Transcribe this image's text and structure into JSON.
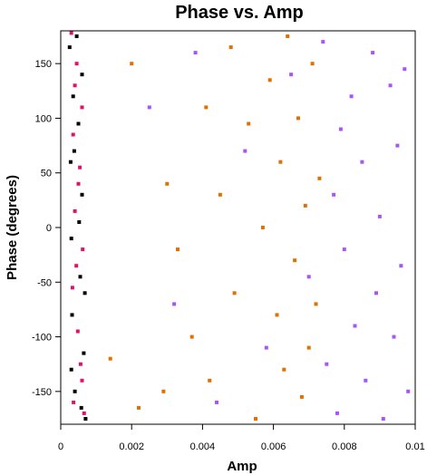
{
  "chart_data": {
    "type": "scatter",
    "title": "Phase vs. Amp",
    "xlabel": "Amp",
    "ylabel": "Phase (degrees)",
    "xlim": [
      0,
      0.01
    ],
    "ylim": [
      -180,
      180
    ],
    "xticks": [
      0,
      0.002,
      0.004,
      0.006,
      0.008,
      0.01
    ],
    "xtick_labels": [
      "0",
      "0.002",
      "0.004",
      "0.006",
      "0.008",
      "0.01"
    ],
    "yticks": [
      -150,
      -100,
      -50,
      0,
      50,
      100,
      150
    ],
    "ytick_labels": [
      "-150",
      "-100",
      "-50",
      "0",
      "50",
      "100",
      "150"
    ],
    "grid": false,
    "series": [
      {
        "color": "#000000",
        "points": [
          [
            0.00025,
            165
          ],
          [
            0.00035,
            120
          ],
          [
            0.0005,
            95
          ],
          [
            0.00028,
            60
          ],
          [
            0.0006,
            30
          ],
          [
            0.0003,
            -10
          ],
          [
            0.00055,
            -45
          ],
          [
            0.00032,
            -80
          ],
          [
            0.00065,
            -115
          ],
          [
            0.0004,
            -150
          ],
          [
            0.0007,
            -175
          ],
          [
            0.00045,
            175
          ],
          [
            0.0006,
            140
          ],
          [
            0.00038,
            70
          ],
          [
            0.00052,
            5
          ],
          [
            0.00068,
            -60
          ],
          [
            0.0003,
            -130
          ],
          [
            0.00058,
            -165
          ]
        ]
      },
      {
        "color": "#e0116c",
        "points": [
          [
            0.0003,
            178
          ],
          [
            0.00045,
            150
          ],
          [
            0.0006,
            110
          ],
          [
            0.00035,
            85
          ],
          [
            0.0005,
            40
          ],
          [
            0.0004,
            15
          ],
          [
            0.00062,
            -20
          ],
          [
            0.00033,
            -55
          ],
          [
            0.00048,
            -95
          ],
          [
            0.00056,
            -125
          ],
          [
            0.00036,
            -160
          ],
          [
            0.00066,
            -170
          ],
          [
            0.0004,
            130
          ],
          [
            0.00054,
            55
          ],
          [
            0.00044,
            -35
          ],
          [
            0.0006,
            -140
          ]
        ]
      },
      {
        "color": "#e07000",
        "points": [
          [
            0.0014,
            -120
          ],
          [
            0.002,
            150
          ],
          [
            0.0022,
            -165
          ],
          [
            0.003,
            40
          ],
          [
            0.0029,
            -150
          ],
          [
            0.0033,
            -20
          ],
          [
            0.0037,
            -100
          ],
          [
            0.0041,
            110
          ],
          [
            0.0042,
            -140
          ],
          [
            0.0045,
            30
          ],
          [
            0.0048,
            165
          ],
          [
            0.0049,
            -60
          ],
          [
            0.0053,
            95
          ],
          [
            0.0055,
            -175
          ],
          [
            0.0057,
            0
          ],
          [
            0.0059,
            135
          ],
          [
            0.0061,
            -80
          ],
          [
            0.0062,
            60
          ],
          [
            0.0063,
            -130
          ],
          [
            0.0064,
            175
          ],
          [
            0.0066,
            -30
          ],
          [
            0.0067,
            100
          ],
          [
            0.0068,
            -155
          ],
          [
            0.0069,
            20
          ],
          [
            0.007,
            -110
          ],
          [
            0.0071,
            150
          ],
          [
            0.0072,
            -70
          ],
          [
            0.0073,
            45
          ]
        ]
      },
      {
        "color": "#a855f7",
        "points": [
          [
            0.0025,
            110
          ],
          [
            0.0032,
            -70
          ],
          [
            0.0038,
            160
          ],
          [
            0.0044,
            -160
          ],
          [
            0.0052,
            70
          ],
          [
            0.0058,
            -110
          ],
          [
            0.0065,
            140
          ],
          [
            0.007,
            -45
          ],
          [
            0.0074,
            170
          ],
          [
            0.0075,
            -125
          ],
          [
            0.0077,
            30
          ],
          [
            0.0078,
            -170
          ],
          [
            0.0079,
            90
          ],
          [
            0.008,
            -20
          ],
          [
            0.0082,
            120
          ],
          [
            0.0083,
            -90
          ],
          [
            0.0085,
            60
          ],
          [
            0.0086,
            -140
          ],
          [
            0.0088,
            160
          ],
          [
            0.0089,
            -60
          ],
          [
            0.009,
            10
          ],
          [
            0.0091,
            -175
          ],
          [
            0.0093,
            130
          ],
          [
            0.0094,
            -100
          ],
          [
            0.0095,
            75
          ],
          [
            0.0096,
            -35
          ],
          [
            0.0097,
            145
          ],
          [
            0.0098,
            -150
          ]
        ]
      }
    ]
  }
}
